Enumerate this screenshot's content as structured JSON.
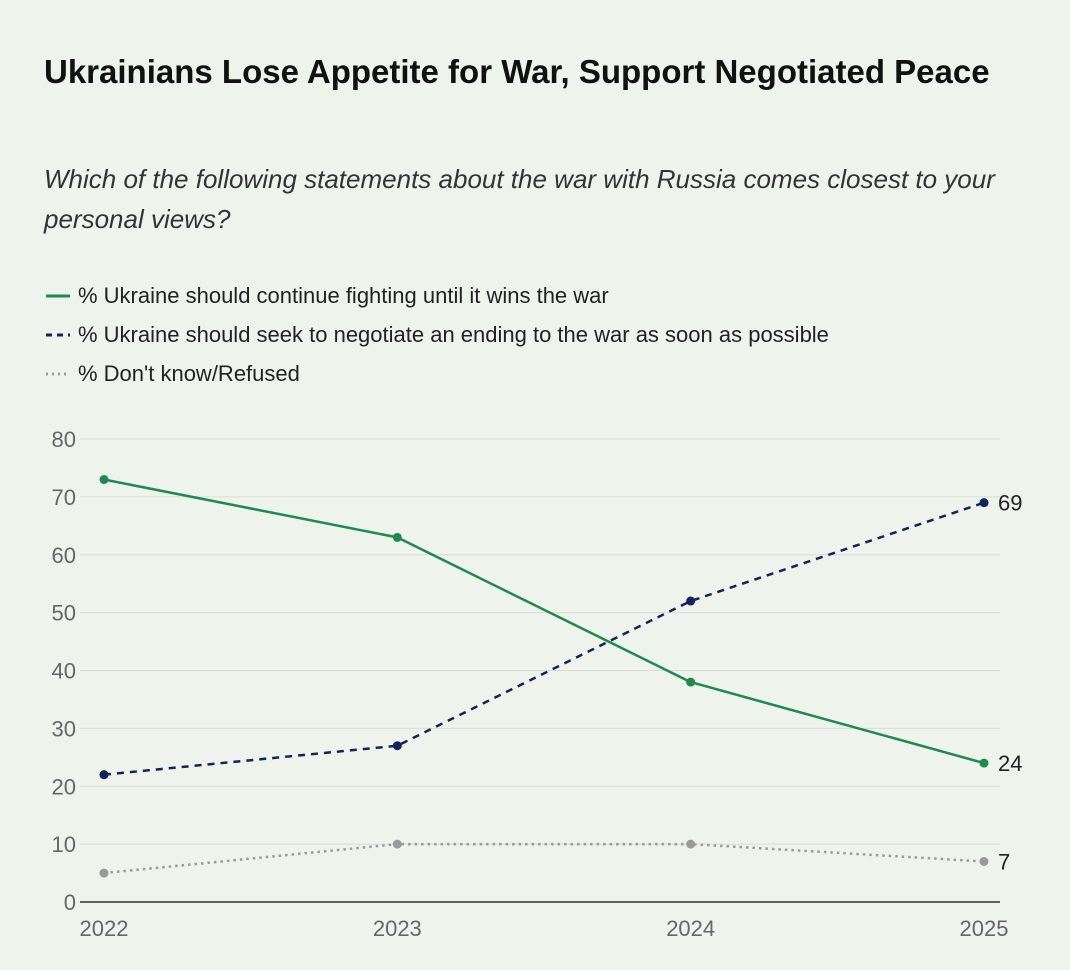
{
  "title": "Ukrainians Lose Appetite for War, Support Negotiated Peace",
  "subtitle": "Which of the following statements about the war with Russia comes closest to your personal views?",
  "colors": {
    "background": "#eef4ec",
    "continue": "#1e8a4c",
    "negotiate": "#13235c",
    "dontknow": "#9a9a9a",
    "grid": "#d8dcd6",
    "axis": "#333333"
  },
  "chart_data": {
    "type": "line",
    "title": "Ukrainians Lose Appetite for War, Support Negotiated Peace",
    "subtitle": "Which of the following statements about the war with Russia comes closest to your personal views?",
    "x": [
      "2022",
      "2023",
      "2024",
      "2025"
    ],
    "ylim": [
      0,
      80
    ],
    "yticks": [
      0,
      10,
      20,
      30,
      40,
      50,
      60,
      70,
      80
    ],
    "grid": true,
    "legend": "top-left",
    "series": [
      {
        "key": "continue",
        "name": "% Ukraine should continue fighting until it wins the war",
        "style": "solid",
        "color": "#1e8a4c",
        "values": [
          73,
          63,
          38,
          24
        ],
        "end_label": "24"
      },
      {
        "key": "negotiate",
        "name": "% Ukraine should seek to negotiate an ending to the war as soon as possible",
        "style": "dashed",
        "color": "#13235c",
        "values": [
          22,
          27,
          52,
          69
        ],
        "end_label": "69"
      },
      {
        "key": "dontknow",
        "name": "% Don't know/Refused",
        "style": "dotted",
        "color": "#9a9a9a",
        "values": [
          5,
          10,
          10,
          7
        ],
        "end_label": "7"
      }
    ]
  }
}
